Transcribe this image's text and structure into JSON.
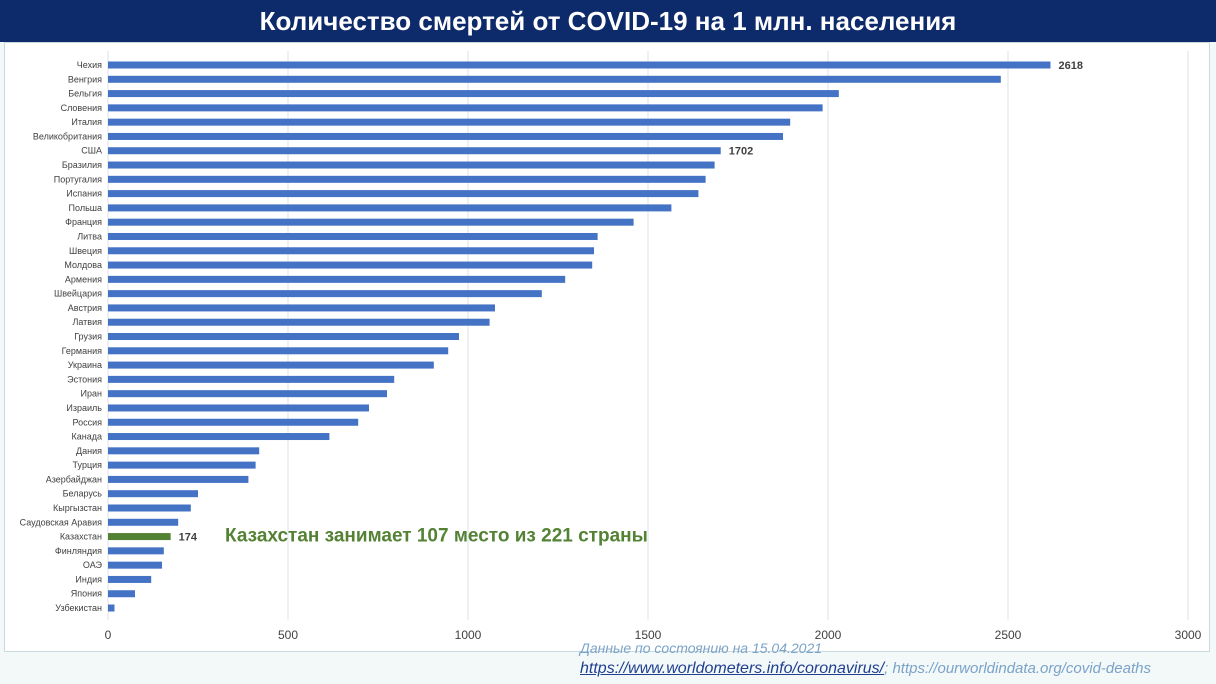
{
  "title": "Количество смертей от COVID-19 на 1 млн. населения",
  "note": "Казахстан занимает 107 место из 221 страны",
  "source": {
    "date_text": "Данные по состоянию на 15.04.2021",
    "link1": "https://www.worldometers.info/coronavirus/",
    "separator": "; ",
    "link2": "https://ourworldindata.org/covid-deaths"
  },
  "colors": {
    "bar": "#4472c4",
    "highlight": "#548235",
    "note": "#548235",
    "title_bg": "#0d2a6b"
  },
  "chart_data": {
    "type": "bar",
    "orientation": "horizontal",
    "title": "Количество смертей от COVID-19 на 1 млн. населения",
    "xlim": [
      0,
      3000
    ],
    "xticks": [
      0,
      500,
      1000,
      1500,
      2000,
      2500,
      3000
    ],
    "grid": "vertical",
    "categories": [
      "Чехия",
      "Венгрия",
      "Бельгия",
      "Словения",
      "Италия",
      "Великобритания",
      "США",
      "Бразилия",
      "Португалия",
      "Испания",
      "Польша",
      "Франция",
      "Литва",
      "Швеция",
      "Молдова",
      "Армения",
      "Швейцария",
      "Австрия",
      "Латвия",
      "Грузия",
      "Германия",
      "Украина",
      "Эстония",
      "Иран",
      "Израиль",
      "Россия",
      "Канада",
      "Дания",
      "Турция",
      "Азербайджан",
      "Беларусь",
      "Кыргызстан",
      "Саудовская Аравия",
      "Казахстан",
      "Финляндия",
      "ОАЭ",
      "Индия",
      "Япония",
      "Узбекистан"
    ],
    "values": [
      2618,
      2480,
      2030,
      1985,
      1895,
      1875,
      1702,
      1685,
      1660,
      1640,
      1565,
      1460,
      1360,
      1350,
      1345,
      1270,
      1205,
      1075,
      1060,
      975,
      945,
      905,
      795,
      775,
      725,
      695,
      615,
      420,
      410,
      390,
      250,
      230,
      195,
      174,
      155,
      150,
      120,
      75,
      18
    ],
    "data_labels": {
      "Чехия": "2618",
      "США": "1702",
      "Казахстан": "174"
    },
    "highlight": "Казахстан"
  }
}
